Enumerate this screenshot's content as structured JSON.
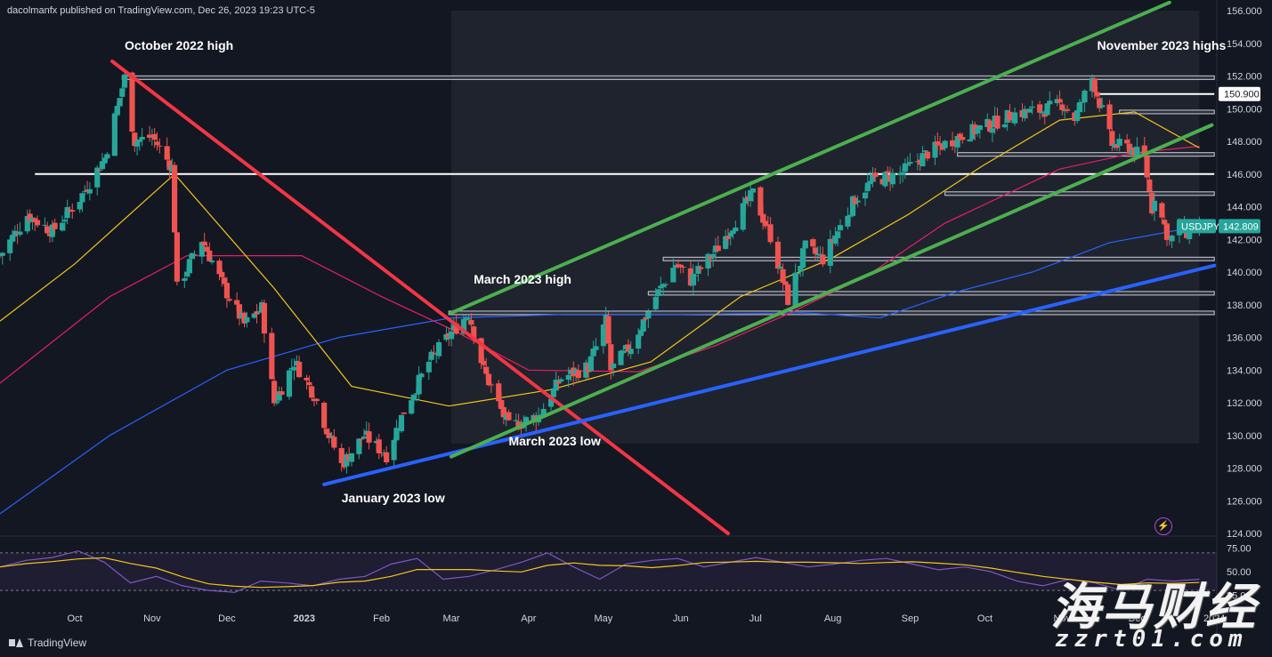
{
  "header": {
    "publisher": "dacolmanfx published on TradingView.com, Dec 26, 2023 19:23 UTC-5"
  },
  "brand": {
    "name": "TradingView"
  },
  "watermark": {
    "line1": "海马财经",
    "line2": "zzrt01.com"
  },
  "colors": {
    "background": "#131722",
    "up": "#26a69a",
    "down": "#ef5350",
    "green_channel": "#4caf50",
    "red_trend": "#f23645",
    "blue_trend": "#2962ff",
    "ma50": "#f5c518",
    "ma100": "#e91e63",
    "ma200": "#2962ff"
  },
  "chart_data": {
    "type": "candlestick",
    "symbol": "USDJPY",
    "last_price": "142.809",
    "marked_level": "150.900",
    "ylim": [
      124,
      156
    ],
    "y_ticks": [
      "156.000",
      "154.000",
      "152.000",
      "150.000",
      "148.000",
      "146.000",
      "144.000",
      "142.000",
      "140.000",
      "138.000",
      "136.000",
      "134.000",
      "132.000",
      "130.000",
      "128.000",
      "126.000",
      "124.000"
    ],
    "x_ticks": [
      "Oct",
      "Nov",
      "Dec",
      "2023",
      "Feb",
      "Mar",
      "Apr",
      "May",
      "Jun",
      "Jul",
      "Aug",
      "Sep",
      "Oct",
      "Nov",
      "Dec",
      "2024"
    ],
    "close_path": [
      [
        "2022-09-01",
        141.0
      ],
      [
        "2022-09-12",
        143.5
      ],
      [
        "2022-09-22",
        142.5
      ],
      [
        "2022-10-03",
        144.5
      ],
      [
        "2022-10-13",
        147.0
      ],
      [
        "2022-10-21",
        151.9
      ],
      [
        "2022-10-25",
        148.0
      ],
      [
        "2022-11-01",
        148.3
      ],
      [
        "2022-11-09",
        146.4
      ],
      [
        "2022-11-11",
        139.0
      ],
      [
        "2022-11-21",
        142.0
      ],
      [
        "2022-11-30",
        139.0
      ],
      [
        "2022-12-08",
        136.8
      ],
      [
        "2022-12-15",
        137.8
      ],
      [
        "2022-12-20",
        132.0
      ],
      [
        "2022-12-28",
        134.5
      ],
      [
        "2023-01-05",
        132.5
      ],
      [
        "2023-01-11",
        130.0
      ],
      [
        "2023-01-16",
        128.2
      ],
      [
        "2023-01-25",
        130.0
      ],
      [
        "2023-02-03",
        128.8
      ],
      [
        "2023-02-10",
        131.5
      ],
      [
        "2023-02-20",
        134.5
      ],
      [
        "2023-03-01",
        136.3
      ],
      [
        "2023-03-08",
        137.5
      ],
      [
        "2023-03-14",
        134.0
      ],
      [
        "2023-03-24",
        130.5
      ],
      [
        "2023-04-05",
        131.2
      ],
      [
        "2023-04-14",
        133.5
      ],
      [
        "2023-04-25",
        134.2
      ],
      [
        "2023-05-02",
        137.0
      ],
      [
        "2023-05-04",
        134.0
      ],
      [
        "2023-05-12",
        135.5
      ],
      [
        "2023-05-22",
        138.5
      ],
      [
        "2023-05-30",
        140.5
      ],
      [
        "2023-06-05",
        139.5
      ],
      [
        "2023-06-15",
        141.3
      ],
      [
        "2023-06-30",
        144.8
      ],
      [
        "2023-07-07",
        142.2
      ],
      [
        "2023-07-14",
        138.3
      ],
      [
        "2023-07-21",
        141.5
      ],
      [
        "2023-07-28",
        140.8
      ],
      [
        "2023-08-10",
        144.5
      ],
      [
        "2023-08-17",
        145.6
      ],
      [
        "2023-08-28",
        146.0
      ],
      [
        "2023-09-08",
        147.3
      ],
      [
        "2023-09-22",
        148.4
      ],
      [
        "2023-10-03",
        149.0
      ],
      [
        "2023-10-13",
        149.7
      ],
      [
        "2023-10-24",
        149.9
      ],
      [
        "2023-11-01",
        150.3
      ],
      [
        "2023-11-06",
        149.4
      ],
      [
        "2023-11-13",
        151.9
      ],
      [
        "2023-11-21",
        147.8
      ],
      [
        "2023-11-28",
        147.6
      ],
      [
        "2023-12-04",
        146.9
      ],
      [
        "2023-12-07",
        143.9
      ],
      [
        "2023-12-08",
        144.7
      ],
      [
        "2023-12-14",
        141.9
      ],
      [
        "2023-12-18",
        142.7
      ],
      [
        "2023-12-22",
        142.3
      ],
      [
        "2023-12-26",
        142.8
      ]
    ],
    "ma50": [
      [
        "2022-09-01",
        137.0
      ],
      [
        "2022-10-01",
        140.5
      ],
      [
        "2022-11-10",
        146.0
      ],
      [
        "2022-12-20",
        139.0
      ],
      [
        "2023-01-20",
        133.0
      ],
      [
        "2023-02-28",
        131.8
      ],
      [
        "2023-04-10",
        132.8
      ],
      [
        "2023-05-20",
        134.5
      ],
      [
        "2023-06-25",
        138.5
      ],
      [
        "2023-07-31",
        140.8
      ],
      [
        "2023-08-31",
        143.5
      ],
      [
        "2023-09-30",
        146.5
      ],
      [
        "2023-10-31",
        149.3
      ],
      [
        "2023-11-30",
        149.8
      ],
      [
        "2023-12-26",
        147.6
      ]
    ],
    "ma100": [
      [
        "2022-09-01",
        133.2
      ],
      [
        "2022-10-15",
        138.5
      ],
      [
        "2022-11-15",
        141.0
      ],
      [
        "2022-12-31",
        141.0
      ],
      [
        "2023-02-01",
        138.5
      ],
      [
        "2023-03-01",
        136.5
      ],
      [
        "2023-04-01",
        134.0
      ],
      [
        "2023-05-15",
        133.9
      ],
      [
        "2023-06-15",
        135.5
      ],
      [
        "2023-07-15",
        137.5
      ],
      [
        "2023-08-15",
        139.8
      ],
      [
        "2023-09-15",
        143.0
      ],
      [
        "2023-10-31",
        146.3
      ],
      [
        "2023-11-30",
        147.3
      ],
      [
        "2023-12-26",
        147.7
      ]
    ],
    "ma200": [
      [
        "2022-09-01",
        125.2
      ],
      [
        "2022-10-15",
        130.0
      ],
      [
        "2022-12-01",
        134.0
      ],
      [
        "2023-01-15",
        136.0
      ],
      [
        "2023-03-01",
        137.2
      ],
      [
        "2023-04-15",
        137.4
      ],
      [
        "2023-06-01",
        137.4
      ],
      [
        "2023-07-20",
        137.5
      ],
      [
        "2023-08-20",
        137.2
      ],
      [
        "2023-09-20",
        138.8
      ],
      [
        "2023-10-20",
        140.0
      ],
      [
        "2023-11-20",
        141.8
      ],
      [
        "2023-12-26",
        142.8
      ]
    ],
    "trendlines": [
      {
        "name": "red-descending-trendline",
        "from": [
          "2022-10-16",
          152.9
        ],
        "to": [
          "2023-06-20",
          124.0
        ]
      },
      {
        "name": "blue-ascending-trendline",
        "from": [
          "2023-01-09",
          127.0
        ],
        "to": [
          "2024-01-01",
          140.4
        ]
      },
      {
        "name": "channel-upper-line",
        "from": [
          "2023-03-01",
          137.5
        ],
        "to": [
          "2023-12-14",
          156.5
        ]
      },
      {
        "name": "channel-lower-line",
        "from": [
          "2023-03-01",
          128.7
        ],
        "to": [
          "2023-12-31",
          149.0
        ]
      }
    ],
    "horizontal_levels": [
      {
        "price": 151.9,
        "from": "2022-10-20",
        "to": "2024-01-01",
        "style": "band"
      },
      {
        "price": 150.9,
        "from": "2023-11-16",
        "to": "2024-01-01",
        "style": "line"
      },
      {
        "price": 149.8,
        "from": "2023-11-24",
        "to": "2024-01-01",
        "style": "band"
      },
      {
        "price": 147.2,
        "from": "2023-09-20",
        "to": "2024-01-01",
        "style": "band"
      },
      {
        "price": 146.0,
        "from": "2022-09-15",
        "to": "2024-01-01",
        "style": "line"
      },
      {
        "price": 144.8,
        "from": "2023-09-15",
        "to": "2024-01-01",
        "style": "band"
      },
      {
        "price": 140.8,
        "from": "2023-05-25",
        "to": "2024-01-01",
        "style": "band"
      },
      {
        "price": 138.7,
        "from": "2023-05-19",
        "to": "2024-01-01",
        "style": "band"
      },
      {
        "price": 137.5,
        "from": "2023-02-28",
        "to": "2024-01-01",
        "style": "band"
      }
    ],
    "annotations": [
      {
        "text": "October 2022 high",
        "date": "2022-10-21",
        "price": 153.6
      },
      {
        "text": "March 2023 high",
        "date": "2023-03-10",
        "price": 139.3
      },
      {
        "text": "March 2023 low",
        "date": "2023-03-24",
        "price": 129.4
      },
      {
        "text": "January 2023 low",
        "date": "2023-01-16",
        "price": 125.9
      },
      {
        "text": "November 2023 highs",
        "date": "2023-11-15",
        "price": 153.6
      }
    ],
    "rsi": {
      "levels": [
        "75.00",
        "50.00",
        "25.00"
      ],
      "values": [
        55,
        62,
        65,
        72,
        60,
        38,
        45,
        35,
        30,
        28,
        40,
        38,
        35,
        42,
        45,
        58,
        64,
        42,
        45,
        52,
        60,
        70,
        55,
        42,
        58,
        62,
        64,
        55,
        60,
        65,
        60,
        55,
        58,
        62,
        64,
        58,
        52,
        55,
        50,
        40,
        35,
        42,
        38,
        30,
        42,
        40,
        42
      ]
    }
  }
}
